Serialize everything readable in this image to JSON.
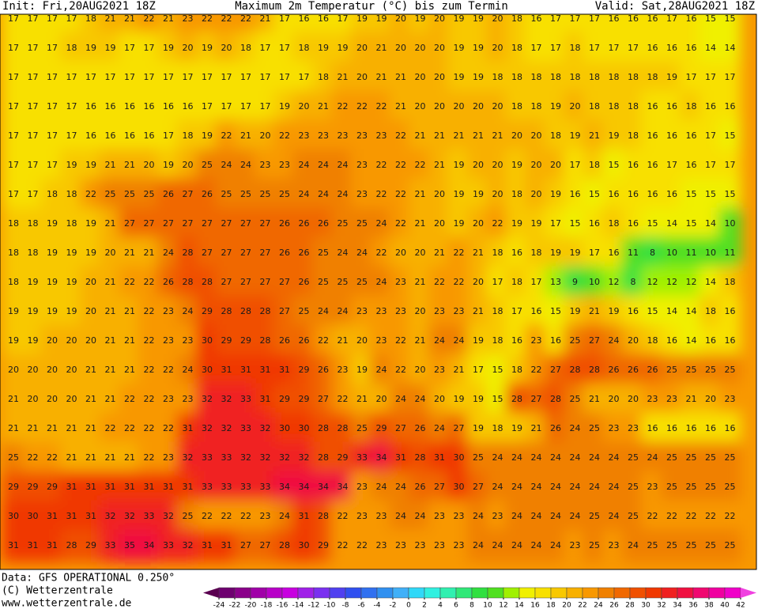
{
  "header": {
    "init": "Init: Fri,20AUG2021 18Z",
    "title": "Maximum 2m Temperatur (°C) bis zum Termin",
    "valid": "Valid: Sat,28AUG2021 18Z"
  },
  "footer": {
    "source": "Data: GFS OPERATIONAL 0.250°",
    "copyright": "(C) Wetterzentrale",
    "url": "www.wetterzentrale.de"
  },
  "colorbar": {
    "ticks": [
      -24,
      -22,
      -20,
      -18,
      -16,
      -14,
      -12,
      -10,
      -8,
      -6,
      -4,
      -2,
      0,
      2,
      4,
      6,
      8,
      10,
      12,
      14,
      16,
      18,
      20,
      22,
      24,
      26,
      28,
      30,
      32,
      34,
      36,
      38,
      40,
      42
    ],
    "colors": [
      "#5a0050",
      "#6e0070",
      "#8a008a",
      "#a000a8",
      "#b800c8",
      "#c800e0",
      "#a020e8",
      "#7a30f0",
      "#5040f0",
      "#3050f0",
      "#3070f0",
      "#3090f0",
      "#40b0f8",
      "#30d8f8",
      "#30f0e0",
      "#30f0b0",
      "#30e878",
      "#30e040",
      "#50e020",
      "#a0f000",
      "#f0f000",
      "#f8e000",
      "#f8c800",
      "#f8b000",
      "#f89800",
      "#f08000",
      "#f06800",
      "#f05000",
      "#f03800",
      "#f02020",
      "#f01040",
      "#f00870",
      "#f000a0",
      "#f000c8",
      "#f040e0"
    ]
  },
  "map": {
    "rows": [
      [
        17,
        17,
        17,
        17,
        18,
        21,
        21,
        22,
        21,
        23,
        22,
        22,
        22,
        21,
        17,
        16,
        16,
        17,
        19,
        19,
        20,
        19,
        20,
        19,
        19,
        20,
        18,
        16,
        17,
        17,
        17,
        16,
        16,
        16,
        17,
        16,
        15,
        15
      ],
      [
        17,
        17,
        17,
        18,
        19,
        19,
        17,
        17,
        19,
        20,
        19,
        20,
        18,
        17,
        17,
        18,
        19,
        19,
        20,
        21,
        20,
        20,
        20,
        19,
        19,
        20,
        18,
        17,
        17,
        18,
        17,
        17,
        17,
        16,
        16,
        16,
        14,
        14
      ],
      [
        17,
        17,
        17,
        17,
        17,
        17,
        17,
        17,
        17,
        17,
        17,
        17,
        17,
        17,
        17,
        17,
        18,
        21,
        20,
        21,
        21,
        20,
        20,
        19,
        19,
        18,
        18,
        18,
        18,
        18,
        18,
        18,
        18,
        18,
        19,
        17,
        17,
        17
      ],
      [
        17,
        17,
        17,
        17,
        16,
        16,
        16,
        16,
        16,
        16,
        17,
        17,
        17,
        17,
        19,
        20,
        21,
        22,
        22,
        22,
        21,
        20,
        20,
        20,
        20,
        20,
        18,
        18,
        19,
        20,
        18,
        18,
        18,
        16,
        16,
        18,
        16,
        16
      ],
      [
        17,
        17,
        17,
        17,
        16,
        16,
        16,
        16,
        17,
        18,
        19,
        22,
        21,
        20,
        22,
        23,
        23,
        23,
        23,
        23,
        22,
        21,
        21,
        21,
        21,
        21,
        20,
        20,
        18,
        19,
        21,
        19,
        18,
        16,
        16,
        16,
        17,
        15
      ],
      [
        17,
        17,
        17,
        19,
        19,
        21,
        21,
        20,
        19,
        20,
        25,
        24,
        24,
        23,
        23,
        24,
        24,
        24,
        23,
        22,
        22,
        22,
        21,
        19,
        20,
        20,
        19,
        20,
        20,
        17,
        18,
        15,
        16,
        16,
        17,
        16,
        17,
        17
      ],
      [
        17,
        17,
        18,
        18,
        22,
        25,
        25,
        25,
        26,
        27,
        26,
        25,
        25,
        25,
        25,
        24,
        24,
        24,
        23,
        22,
        22,
        21,
        20,
        19,
        19,
        20,
        18,
        20,
        19,
        16,
        15,
        16,
        16,
        16,
        16,
        15,
        15,
        15
      ],
      [
        18,
        18,
        19,
        18,
        19,
        21,
        27,
        27,
        27,
        27,
        27,
        27,
        27,
        27,
        26,
        26,
        26,
        25,
        25,
        24,
        22,
        21,
        20,
        19,
        20,
        22,
        19,
        19,
        17,
        15,
        16,
        18,
        16,
        15,
        14,
        15,
        14,
        10
      ],
      [
        18,
        18,
        19,
        19,
        19,
        20,
        21,
        21,
        24,
        28,
        27,
        27,
        27,
        27,
        26,
        26,
        25,
        24,
        24,
        22,
        20,
        20,
        21,
        22,
        21,
        18,
        16,
        18,
        19,
        19,
        17,
        16,
        11,
        8,
        10,
        11,
        10,
        11
      ],
      [
        18,
        19,
        19,
        19,
        20,
        21,
        22,
        22,
        26,
        28,
        28,
        27,
        27,
        27,
        27,
        26,
        25,
        25,
        25,
        24,
        23,
        21,
        22,
        22,
        20,
        17,
        18,
        17,
        13,
        9,
        10,
        12,
        8,
        12,
        12,
        12,
        14,
        18
      ],
      [
        19,
        19,
        19,
        19,
        20,
        21,
        21,
        22,
        23,
        24,
        29,
        28,
        28,
        28,
        27,
        25,
        24,
        24,
        23,
        23,
        23,
        20,
        23,
        23,
        21,
        18,
        17,
        16,
        15,
        19,
        21,
        19,
        16,
        15,
        14,
        14,
        18,
        16
      ],
      [
        19,
        19,
        20,
        20,
        20,
        21,
        21,
        22,
        23,
        23,
        30,
        29,
        29,
        28,
        26,
        26,
        22,
        21,
        20,
        23,
        22,
        21,
        24,
        24,
        19,
        18,
        16,
        23,
        16,
        25,
        27,
        24,
        20,
        18,
        16,
        14,
        16,
        16
      ],
      [
        20,
        20,
        20,
        20,
        21,
        21,
        21,
        22,
        22,
        24,
        30,
        31,
        31,
        31,
        31,
        29,
        26,
        23,
        19,
        24,
        22,
        20,
        23,
        21,
        17,
        15,
        18,
        22,
        27,
        28,
        28,
        26,
        26,
        26,
        25,
        25,
        25,
        25
      ],
      [
        21,
        20,
        20,
        20,
        21,
        21,
        22,
        22,
        23,
        23,
        32,
        32,
        33,
        31,
        29,
        29,
        27,
        22,
        21,
        20,
        24,
        24,
        20,
        19,
        19,
        15,
        28,
        27,
        28,
        25,
        21,
        20,
        20,
        23,
        23,
        21,
        20,
        23
      ],
      [
        21,
        21,
        21,
        21,
        21,
        22,
        22,
        22,
        22,
        31,
        32,
        32,
        33,
        32,
        30,
        30,
        28,
        28,
        25,
        29,
        27,
        26,
        24,
        27,
        19,
        18,
        19,
        21,
        26,
        24,
        25,
        23,
        23,
        16,
        16,
        16,
        16,
        16
      ],
      [
        25,
        22,
        22,
        21,
        21,
        21,
        21,
        22,
        23,
        32,
        33,
        33,
        32,
        32,
        32,
        32,
        28,
        29,
        33,
        34,
        31,
        28,
        31,
        30,
        25,
        24,
        24,
        24,
        24,
        24,
        24,
        24,
        25,
        24,
        25,
        25,
        25,
        25
      ],
      [
        29,
        29,
        29,
        31,
        31,
        31,
        31,
        31,
        31,
        31,
        33,
        33,
        33,
        33,
        34,
        34,
        34,
        34,
        23,
        24,
        24,
        26,
        27,
        30,
        27,
        24,
        24,
        24,
        24,
        24,
        24,
        24,
        25,
        23,
        25,
        25,
        25,
        25
      ],
      [
        30,
        30,
        31,
        31,
        31,
        32,
        32,
        33,
        32,
        25,
        22,
        22,
        22,
        23,
        24,
        31,
        28,
        22,
        23,
        23,
        24,
        24,
        23,
        23,
        24,
        23,
        24,
        24,
        24,
        24,
        25,
        24,
        25,
        22,
        22,
        22,
        22,
        22
      ],
      [
        31,
        31,
        31,
        28,
        29,
        33,
        35,
        34,
        33,
        32,
        31,
        31,
        27,
        27,
        28,
        30,
        29,
        22,
        22,
        23,
        23,
        23,
        23,
        23,
        24,
        24,
        24,
        24,
        24,
        23,
        25,
        23,
        24,
        25,
        25,
        25,
        25,
        25
      ]
    ]
  }
}
